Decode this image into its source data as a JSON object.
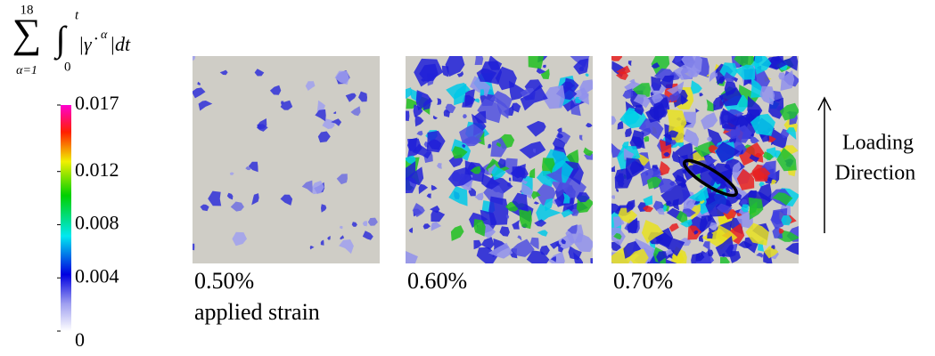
{
  "colorbar": {
    "label": {
      "sum": "∑",
      "sum_upper": "18",
      "sum_lower": "α=1",
      "int": "∫",
      "int_upper": "t",
      "int_lower": "0",
      "integrand_left": "|γ̇",
      "superscript": "α",
      "integrand_right": "|dt"
    },
    "ticks": [
      0,
      0.004,
      0.008,
      0.012,
      0.017
    ]
  },
  "panels": [
    {
      "label": "0.50%",
      "sublabel": "applied strain"
    },
    {
      "label": "0.60%"
    },
    {
      "label": "0.70%"
    }
  ],
  "annotation": {
    "line1": "Loading",
    "line2": "Direction"
  }
}
